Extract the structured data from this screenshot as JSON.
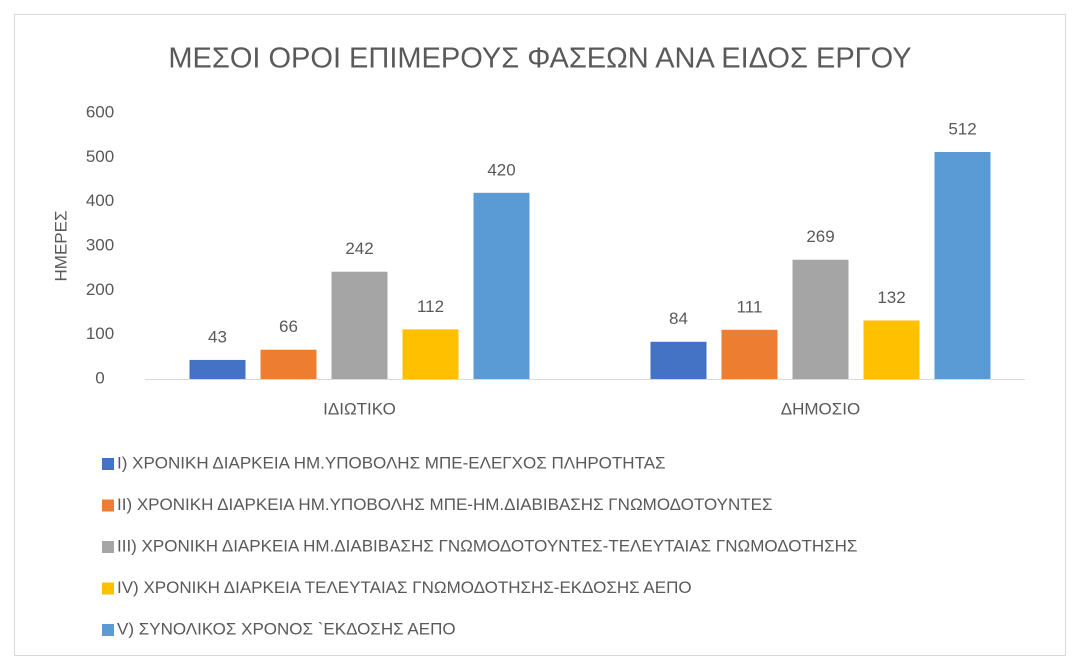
{
  "chart_data": {
    "type": "bar",
    "title": "ΜΕΣΟΙ ΟΡΟΙ  ΕΠΙΜΕΡΟΥΣ ΦΑΣΕΩΝ ΑΝΑ ΕΙΔΟΣ ΕΡΓΟΥ",
    "y_label": "ΗΜΕΡΕΣ",
    "categories": [
      "ΙΔΙΩΤΙΚΟ",
      "ΔΗΜΟΣΙΟ"
    ],
    "series": [
      {
        "name": "I) ΧΡΟΝΙΚΗ ΔΙΑΡΚΕΙΑ ΗΜ.ΥΠΟΒΟΛΗΣ ΜΠΕ-ΕΛΕΓΧΟΣ ΠΛΗΡΟΤΗΤΑΣ",
        "color": "#4472c4",
        "values": [
          43,
          84
        ]
      },
      {
        "name": "II) ΧΡΟΝΙΚΗ ΔΙΑΡΚΕΙΑ ΗΜ.ΥΠΟΒΟΛΗΣ ΜΠΕ-ΗΜ.ΔΙΑΒΙΒΑΣΗΣ ΓΝΩΜΟΔΟΤΟΥΝΤΕΣ",
        "color": "#ed7d31",
        "values": [
          66,
          111
        ]
      },
      {
        "name": "III) ΧΡΟΝΙΚΗ ΔΙΑΡΚΕΙΑ ΗΜ.ΔΙΑΒΙΒΑΣΗΣ ΓΝΩΜΟΔΟΤΟΥΝΤΕΣ-ΤΕΛΕΥΤΑΙΑΣ ΓΝΩΜΟΔΟΤΗΣΗΣ",
        "color": "#a5a5a5",
        "values": [
          242,
          269
        ]
      },
      {
        "name": "IV) ΧΡΟΝΙΚΗ ΔΙΑΡΚΕΙΑ ΤΕΛΕΥΤΑΙΑΣ ΓΝΩΜΟΔΟΤΗΣΗΣ-ΕΚΔΟΣΗΣ ΑΕΠΟ",
        "color": "#ffc000",
        "values": [
          112,
          132
        ]
      },
      {
        "name": "V) ΣΥΝΟΛΙΚΟΣ ΧΡΟΝΟΣ `ΕΚΔΟΣΗΣ ΑΕΠΟ",
        "color": "#5b9bd5",
        "values": [
          420,
          512
        ]
      }
    ],
    "ylim": [
      0,
      600
    ],
    "yticks": [
      0,
      100,
      200,
      300,
      400,
      500,
      600
    ],
    "grid": false,
    "legend": "bottom"
  }
}
